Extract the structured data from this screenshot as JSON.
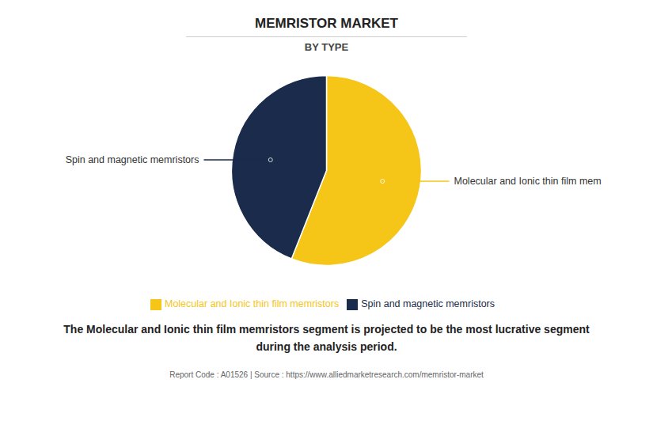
{
  "chart_data": {
    "type": "pie",
    "title": "MEMRISTOR MARKET",
    "subtitle": "BY TYPE",
    "categories": [
      "Molecular and Ionic thin film memristors",
      "Spin and magnetic memristors"
    ],
    "values": [
      56,
      44
    ],
    "colors": [
      "#f5c518",
      "#1b2b4b"
    ],
    "annotations": [
      "Molecular and Ionic thin film mem",
      "Spin and magnetic memristors"
    ],
    "description": "The Molecular and Ionic thin film memristors segment is projected to be the most lucrative segment\nduring the analysis period.",
    "footer": "Report Code : A01526  |  Source : https://www.alliedmarketresearch.com/memristor-market",
    "legend": "bottom"
  }
}
